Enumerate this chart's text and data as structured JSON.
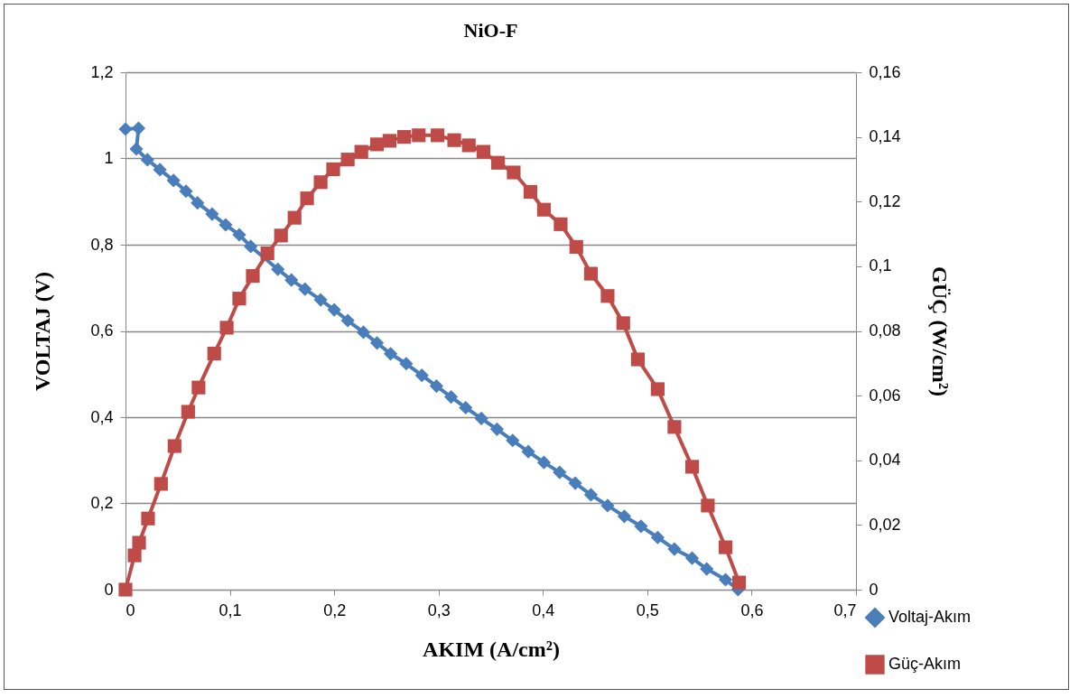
{
  "chart_data": {
    "type": "line",
    "title": "NiO-F",
    "xlabel": "AKIM (A/cm²)",
    "ylabel": "VOLTAJ (V)",
    "y2label": "GÜÇ (W/cm²)",
    "xlim": [
      0,
      0.7
    ],
    "xticks": [
      0,
      {
        "value": 0.1,
        "label": "0,1"
      },
      {
        "value": 0.2,
        "label": "0,2"
      },
      {
        "value": 0.3,
        "label": "0,3"
      },
      {
        "value": 0.4,
        "label": "0,4"
      },
      {
        "value": 0.5,
        "label": "0,5"
      },
      {
        "value": 0.6,
        "label": "0,6"
      },
      {
        "value": 0.7,
        "label": "0,7"
      }
    ],
    "ylim": [
      0,
      1.2
    ],
    "yticks": [
      0,
      {
        "value": 0.2,
        "label": "0,2"
      },
      {
        "value": 0.4,
        "label": "0,4"
      },
      {
        "value": 0.6,
        "label": "0,6"
      },
      {
        "value": 0.8,
        "label": "0,8"
      },
      1,
      {
        "value": 1.2,
        "label": "1,2"
      }
    ],
    "y2lim": [
      0,
      0.16
    ],
    "y2ticks": [
      0,
      {
        "value": 0.02,
        "label": "0,02"
      },
      {
        "value": 0.04,
        "label": "0,04"
      },
      {
        "value": 0.06,
        "label": "0,06"
      },
      {
        "value": 0.08,
        "label": "0,08"
      },
      {
        "value": 0.1,
        "label": "0,1"
      },
      {
        "value": 0.12,
        "label": "0,12"
      },
      {
        "value": 0.14,
        "label": "0,14"
      },
      {
        "value": 0.16,
        "label": "0,16"
      }
    ],
    "grid": "y",
    "legend": "bottom right",
    "line_style": "solid",
    "series": [
      {
        "name": "Voltaj-Akım",
        "color": "#4a7ebb",
        "marker": "diamond",
        "x": [
          0,
          0.0125,
          0.0104,
          0.021,
          0.033,
          0.046,
          0.058,
          0.069,
          0.083,
          0.096,
          0.109,
          0.12,
          0.146,
          0.159,
          0.172,
          0.187,
          0.2,
          0.213,
          0.228,
          0.241,
          0.254,
          0.269,
          0.284,
          0.298,
          0.312,
          0.326,
          0.341,
          0.356,
          0.371,
          0.386,
          0.401,
          0.416,
          0.431,
          0.446,
          0.462,
          0.478,
          0.494,
          0.51,
          0.526,
          0.543,
          0.557,
          0.575,
          0.587
        ],
        "values": [
          1.068,
          1.07,
          1.022,
          0.997,
          0.974,
          0.949,
          0.924,
          0.897,
          0.871,
          0.846,
          0.823,
          0.796,
          0.743,
          0.718,
          0.697,
          0.672,
          0.649,
          0.624,
          0.597,
          0.572,
          0.547,
          0.524,
          0.497,
          0.472,
          0.447,
          0.422,
          0.397,
          0.372,
          0.346,
          0.32,
          0.295,
          0.272,
          0.247,
          0.22,
          0.195,
          0.17,
          0.147,
          0.121,
          0.094,
          0.073,
          0.048,
          0.023,
          0.0
        ]
      },
      {
        "name": "Güç-Akım",
        "color": "#be4b48",
        "marker": "square",
        "axis": "y2",
        "x": [
          0,
          0.0087,
          0.013,
          0.0216,
          0.034,
          0.047,
          0.06,
          0.07,
          0.085,
          0.097,
          0.109,
          0.122,
          0.136,
          0.149,
          0.162,
          0.174,
          0.187,
          0.199,
          0.213,
          0.226,
          0.241,
          0.253,
          0.267,
          0.281,
          0.299,
          0.315,
          0.329,
          0.343,
          0.357,
          0.372,
          0.388,
          0.401,
          0.417,
          0.432,
          0.446,
          0.462,
          0.477,
          0.491,
          0.51,
          0.526,
          0.543,
          0.558,
          0.575,
          0.588
        ],
        "values": [
          0,
          0.0106,
          0.0145,
          0.022,
          0.0327,
          0.0444,
          0.055,
          0.0625,
          0.073,
          0.081,
          0.09,
          0.097,
          0.104,
          0.1095,
          0.115,
          0.121,
          0.126,
          0.13,
          0.133,
          0.1354,
          0.1377,
          0.1388,
          0.14,
          0.1405,
          0.1405,
          0.139,
          0.1374,
          0.1354,
          0.132,
          0.129,
          0.123,
          0.1175,
          0.113,
          0.106,
          0.0977,
          0.0908,
          0.0824,
          0.0712,
          0.062,
          0.0503,
          0.038,
          0.026,
          0.0131,
          0.0022
        ]
      }
    ]
  }
}
